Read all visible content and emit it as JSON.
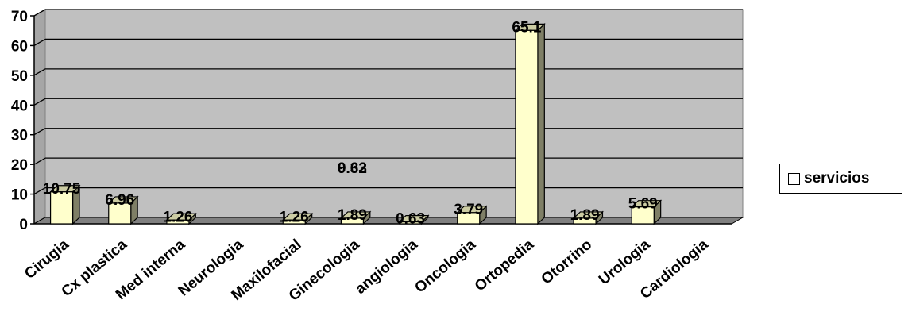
{
  "chart_data": {
    "type": "bar",
    "title": "",
    "xlabel": "",
    "ylabel": "",
    "ylim": [
      0,
      70
    ],
    "yticks": [
      0,
      10,
      20,
      30,
      40,
      50,
      60,
      70
    ],
    "categories": [
      "Cirugia",
      "Cx plastica",
      "Med interna",
      "Neurologia",
      "Maxilofacial",
      "Ginecologia",
      "angiologia",
      "Oncologia",
      "Ortopedia",
      "Otorrino",
      "Urologia",
      "Cardiologia"
    ],
    "series": [
      {
        "name": "servicios",
        "values": [
          10.75,
          6.96,
          1.26,
          0,
          1.26,
          1.89,
          0.63,
          3.79,
          65.1,
          1.89,
          5.69,
          0
        ],
        "labels": [
          "10.75",
          "6.96",
          "1.26",
          "",
          "1.26",
          "1.89",
          "0.63",
          "3.79",
          "65.1",
          "1.89",
          "5.69",
          ""
        ]
      }
    ],
    "extra_labels": [
      {
        "text": "9.32",
        "category": "Ginecologia",
        "y_value": 19
      },
      {
        "text": "0.63",
        "category": "Ginecologia",
        "y_value": 19
      }
    ],
    "grid": true,
    "legend_position": "right",
    "colors": {
      "plot_background": "#c0c0c0",
      "bar_front": "#ffffcc",
      "bar_side": "#7f7f66",
      "bar_top": "#cccca3",
      "floor": "#808080",
      "gridline": "#000000"
    }
  },
  "legend": {
    "label": "servicios"
  }
}
